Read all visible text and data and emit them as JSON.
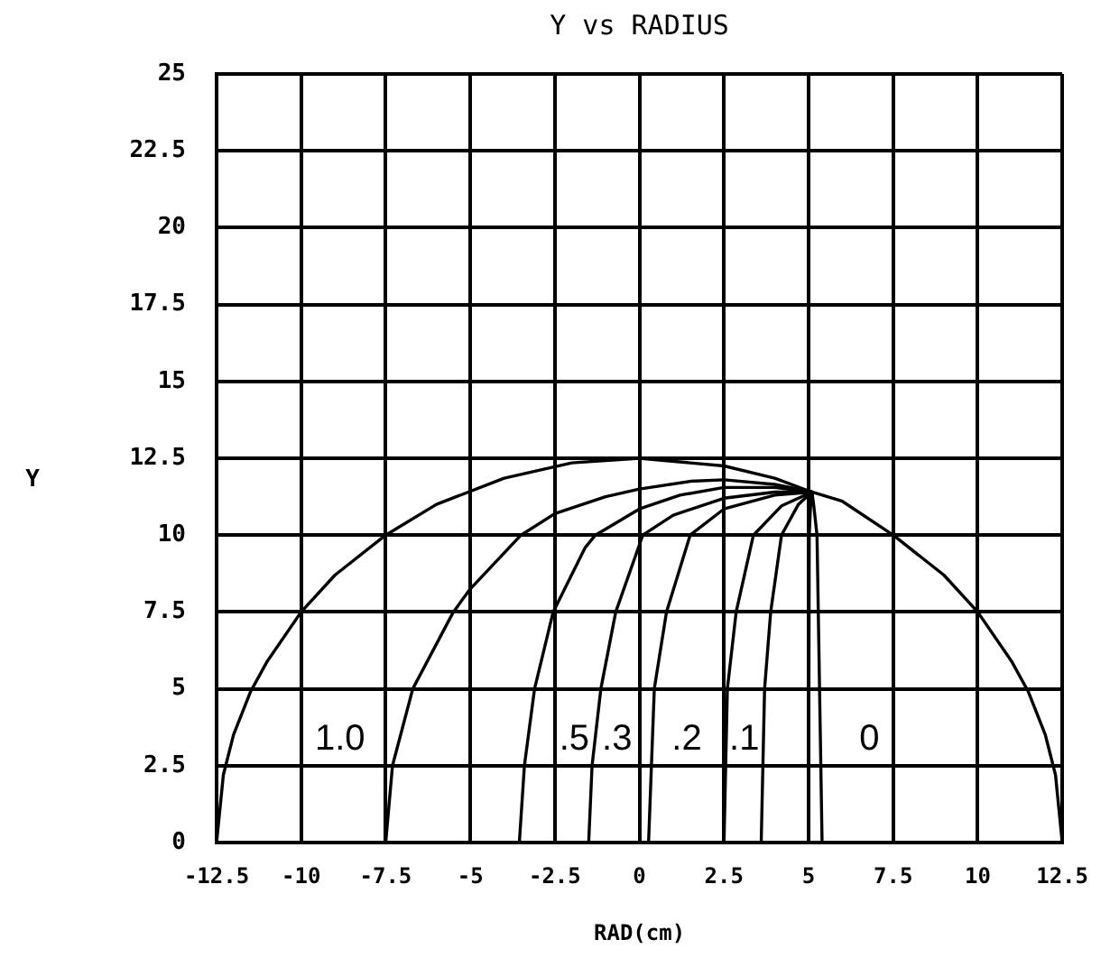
{
  "chart_data": {
    "type": "line",
    "title": "Y vs RADIUS",
    "xlabel": "RAD(cm)",
    "ylabel": "Y",
    "xlim": [
      -12.5,
      12.5
    ],
    "xticks": [
      -12.5,
      -10,
      -7.5,
      -5,
      -2.5,
      0,
      2.5,
      5,
      7.5,
      10,
      12.5
    ],
    "ylim": [
      0,
      25
    ],
    "yticks": [
      0,
      2.5,
      5,
      7.5,
      10,
      12.5,
      15,
      17.5,
      20,
      22.5,
      25
    ],
    "grid": true,
    "marker": "none",
    "line_style": "solid",
    "annotations": [
      "1.0",
      ".5",
      ".3",
      ".2",
      ".1",
      "0"
    ],
    "series": [
      {
        "color": "#000000",
        "x": [
          -12.5,
          -12.3,
          -12,
          -11.5,
          -11,
          -10,
          -9,
          -7.5,
          -6,
          -4,
          -2,
          0,
          2.5,
          4,
          5.1,
          6,
          7.5,
          9,
          10,
          11,
          11.5,
          12,
          12.3,
          12.5
        ],
        "values": [
          0,
          2.2,
          3.5,
          4.9,
          5.9,
          7.5,
          8.7,
          10,
          11,
          11.85,
          12.35,
          12.5,
          12.25,
          11.85,
          11.4,
          11.1,
          10,
          8.7,
          7.5,
          5.9,
          4.9,
          3.5,
          2.2,
          0
        ]
      },
      {
        "color": "#000000",
        "x": [
          -7.5,
          -7.3,
          -6.7,
          -5.5,
          -5,
          -3.5,
          -2.5,
          -1,
          0,
          1.5,
          2.5,
          4,
          5.1
        ],
        "values": [
          0,
          2.5,
          5,
          7.5,
          8.25,
          10,
          10.7,
          11.25,
          11.5,
          11.75,
          11.8,
          11.65,
          11.4
        ]
      },
      {
        "color": "#000000",
        "x": [
          -3.55,
          -3.4,
          -3.1,
          -2.55,
          -1.6,
          -1.3,
          0,
          1.2,
          2.5,
          4,
          5.1
        ],
        "values": [
          0,
          2.5,
          5,
          7.5,
          9.6,
          10,
          10.85,
          11.3,
          11.55,
          11.55,
          11.4
        ]
      },
      {
        "color": "#000000",
        "x": [
          -1.5,
          -1.4,
          -1.14,
          -0.7,
          0.1,
          1,
          2.5,
          4,
          5.1
        ],
        "values": [
          0,
          2.5,
          5,
          7.5,
          10,
          10.65,
          11.2,
          11.4,
          11.4
        ]
      },
      {
        "color": "#000000",
        "x": [
          0.27,
          0.44,
          0.8,
          1.5,
          2.5,
          4,
          5.1
        ],
        "values": [
          0,
          5,
          7.5,
          10,
          10.85,
          11.3,
          11.4
        ]
      },
      {
        "color": "#000000",
        "x": [
          2.5,
          2.6,
          2.86,
          3.37,
          4.2,
          5.1
        ],
        "values": [
          0,
          5,
          7.5,
          10,
          10.95,
          11.4
        ]
      },
      {
        "color": "#000000",
        "x": [
          3.6,
          3.7,
          3.88,
          4.2,
          4.7,
          5.1
        ],
        "values": [
          0,
          5,
          7.5,
          10,
          11,
          11.4
        ]
      },
      {
        "color": "#000000",
        "x": [
          5.0,
          5.02,
          5.06,
          5.1
        ],
        "values": [
          0,
          10,
          11,
          11.4
        ]
      },
      {
        "color": "#000000",
        "x": [
          5.4,
          5.25,
          5.15,
          5.1
        ],
        "values": [
          0,
          10,
          11,
          11.4
        ]
      }
    ]
  }
}
